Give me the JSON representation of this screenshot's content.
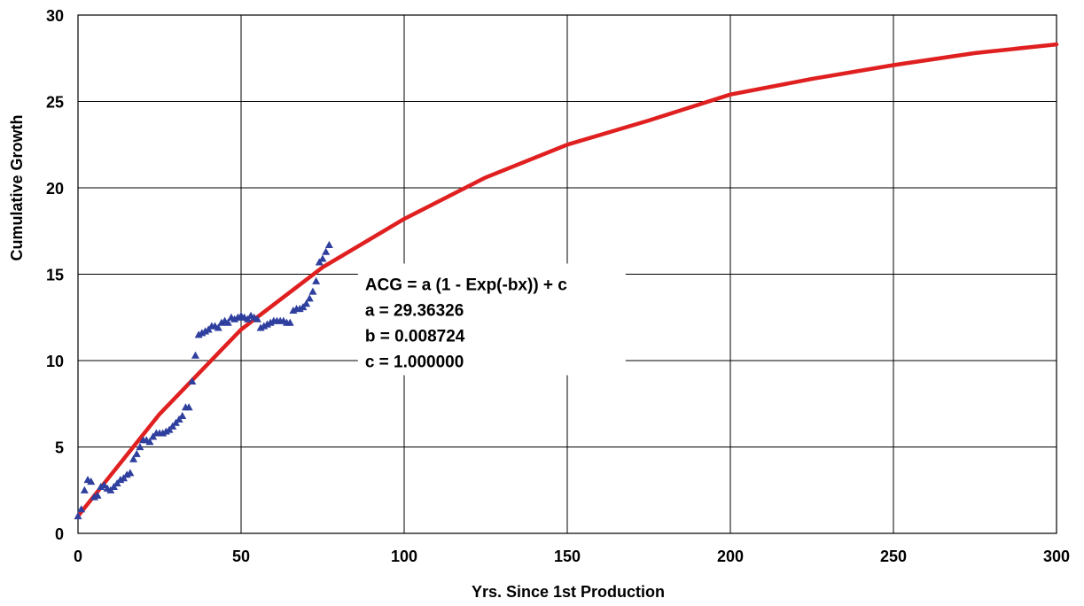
{
  "chart_data": {
    "type": "scatter",
    "xlabel": "Yrs. Since 1st Production",
    "ylabel": "Cumulative Growth",
    "xlim": [
      0,
      300
    ],
    "ylim": [
      0,
      30
    ],
    "x_ticks": [
      "0",
      "50",
      "100",
      "150",
      "200",
      "250",
      "300"
    ],
    "y_ticks": [
      "0",
      "5",
      "10",
      "15",
      "20",
      "25",
      "30"
    ],
    "grid": true,
    "series": [
      {
        "kind": "points",
        "marker": "triangle",
        "color": "#2e3f9e",
        "x": [
          0,
          1,
          2,
          3,
          4,
          5,
          6,
          7,
          8,
          9,
          10,
          11,
          12,
          13,
          14,
          15,
          16,
          17,
          18,
          19,
          20,
          21,
          22,
          23,
          24,
          25,
          26,
          27,
          28,
          29,
          30,
          31,
          32,
          33,
          34,
          35,
          36,
          37,
          38,
          39,
          40,
          41,
          42,
          43,
          44,
          45,
          46,
          47,
          48,
          49,
          50,
          51,
          52,
          53,
          54,
          55,
          56,
          57,
          58,
          59,
          60,
          61,
          62,
          63,
          64,
          65,
          66,
          67,
          68,
          69,
          70,
          71,
          72,
          73,
          74,
          75,
          76,
          77
        ],
        "y": [
          1.0,
          1.4,
          2.5,
          3.1,
          3.0,
          2.1,
          2.2,
          2.7,
          2.8,
          2.6,
          2.5,
          2.7,
          2.9,
          3.1,
          3.2,
          3.4,
          3.5,
          4.3,
          4.6,
          5.0,
          5.4,
          5.4,
          5.3,
          5.6,
          5.8,
          5.8,
          5.8,
          5.9,
          6.0,
          6.2,
          6.4,
          6.6,
          6.8,
          7.3,
          7.3,
          8.8,
          10.3,
          11.5,
          11.6,
          11.7,
          11.8,
          12.0,
          12.0,
          11.9,
          12.2,
          12.3,
          12.2,
          12.5,
          12.4,
          12.5,
          12.6,
          12.5,
          12.4,
          12.6,
          12.5,
          12.4,
          11.9,
          12.0,
          12.1,
          12.2,
          12.3,
          12.3,
          12.3,
          12.3,
          12.2,
          12.2,
          12.9,
          13.0,
          13.0,
          13.1,
          13.3,
          13.6,
          14.0,
          14.6,
          15.7,
          15.9,
          16.3,
          16.7
        ]
      },
      {
        "kind": "line",
        "color": "#e02020",
        "x": [
          0,
          25,
          50,
          75,
          100,
          125,
          150,
          175,
          200,
          225,
          250,
          275,
          300
        ],
        "y": [
          1.0,
          6.9,
          11.8,
          15.4,
          18.2,
          20.6,
          22.5,
          23.9,
          25.4,
          26.3,
          27.1,
          27.8,
          28.3
        ]
      }
    ],
    "annotation": {
      "lines": [
        "ACG = a (1 - Exp(-bx)) + c",
        "a = 29.36326",
        "b = 0.008724",
        "c = 1.000000"
      ],
      "anchor_x": 88,
      "anchor_y": 15
    }
  }
}
